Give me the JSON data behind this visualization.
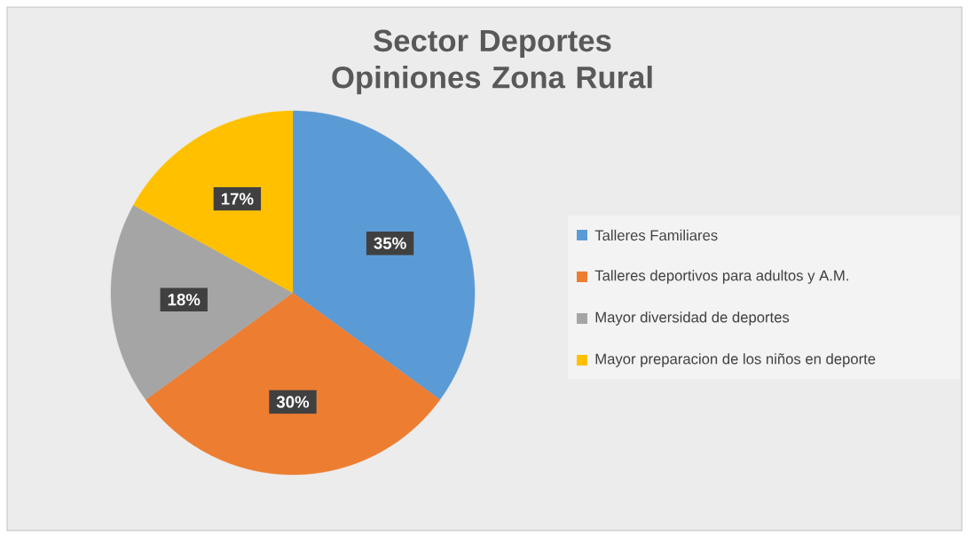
{
  "chart_data": {
    "type": "pie",
    "title": "Sector Deportes Opiniones Zona Rural",
    "categories": [
      "Talleres Familiares",
      "Talleres deportivos para adultos y A.M.",
      "Mayor diversidad de deportes",
      "Mayor preparacion de los niños en deporte"
    ],
    "values": [
      35,
      30,
      18,
      17
    ],
    "colors": [
      "#5b9bd5",
      "#ed7d31",
      "#a5a5a5",
      "#ffc000"
    ],
    "value_labels": [
      "35%",
      "30%",
      "18%",
      "17%"
    ],
    "legend": "right"
  }
}
